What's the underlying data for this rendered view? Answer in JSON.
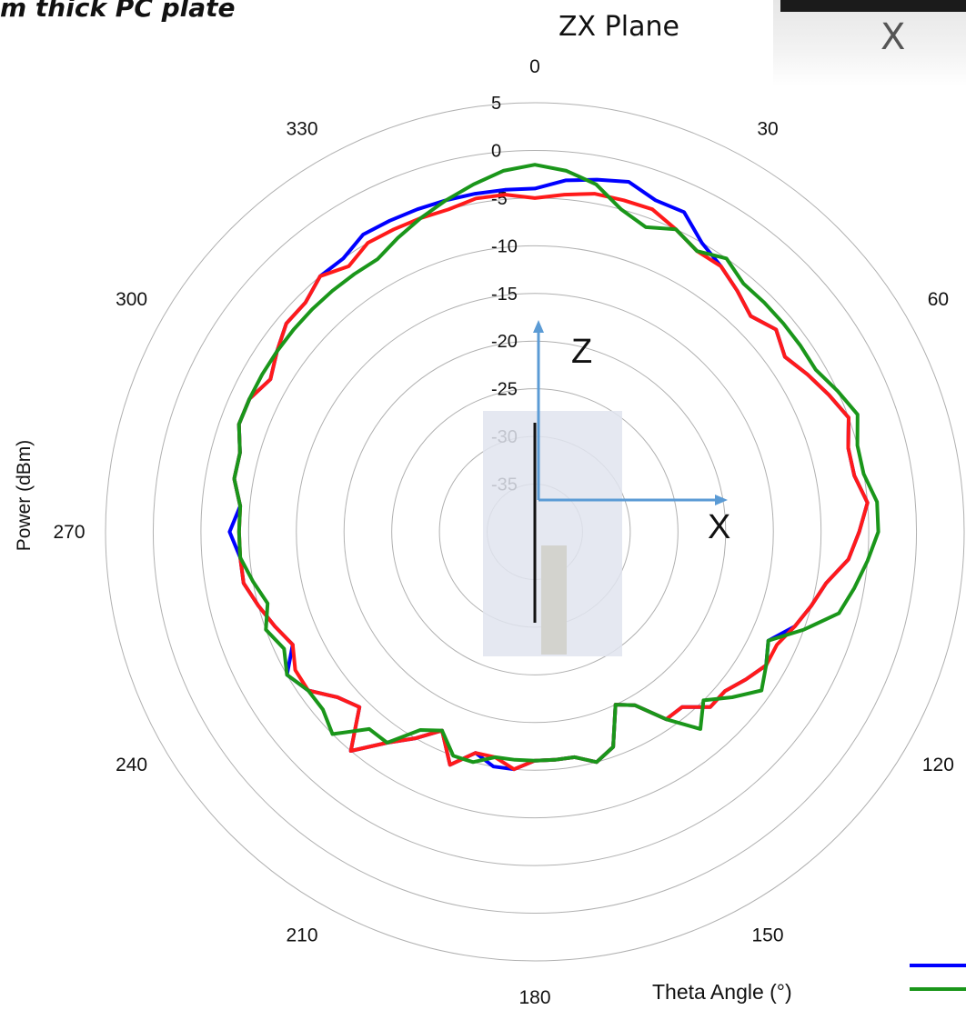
{
  "page_title": "m thick PC plate",
  "plane_title": "ZX Plane",
  "inset_label": "X",
  "colors": {
    "grid": "#b0b0b0",
    "series_1": "#0000ff",
    "series_2": "#ff1a1a",
    "series_3": "#1a961a",
    "axis_arrows": "#5b9bd5"
  },
  "overlay": {
    "z_label": "Z",
    "x_label": "X"
  },
  "chart_data": {
    "type": "polar-line",
    "title": "ZX Plane",
    "ylabel": "Power (dBm)",
    "xlabel": "Theta  Angle (°)",
    "r_range": [
      -40,
      5
    ],
    "r_ticks": [
      5,
      0,
      -5,
      -10,
      -15,
      -20,
      -25,
      -30,
      -35
    ],
    "angle_ticks": [
      0,
      30,
      60,
      120,
      150,
      180,
      210,
      240,
      270,
      300,
      330
    ],
    "grid": true,
    "theta": [
      0,
      5,
      10,
      15,
      20,
      25,
      30,
      35,
      40,
      45,
      50,
      55,
      60,
      65,
      70,
      75,
      80,
      85,
      90,
      95,
      100,
      105,
      110,
      115,
      120,
      125,
      130,
      135,
      140,
      145,
      150,
      155,
      160,
      165,
      170,
      175,
      180,
      185,
      190,
      195,
      200,
      205,
      210,
      215,
      220,
      225,
      230,
      235,
      240,
      245,
      250,
      255,
      260,
      265,
      270,
      275,
      280,
      285,
      290,
      295,
      300,
      305,
      310,
      315,
      320,
      325,
      330,
      335,
      340,
      345,
      350,
      355
    ],
    "series": [
      {
        "color": "#0000ff",
        "values": [
          -4,
          -3,
          -2.5,
          -2,
          -3,
          -3,
          -5,
          -6,
          -7,
          -8,
          -7,
          -8,
          -7,
          -6,
          -5,
          -6,
          -6,
          -5,
          -6,
          -7,
          -9,
          -10,
          -11,
          -13,
          -12,
          -13,
          -14,
          -14,
          -16,
          -16,
          -19,
          -20,
          -16,
          -15,
          -16,
          -16,
          -16,
          -15,
          -15,
          -16,
          -14,
          -17,
          -15,
          -13,
          -10,
          -14,
          -13,
          -11,
          -10,
          -12,
          -11,
          -10,
          -9,
          -9,
          -8,
          -9,
          -8,
          -8,
          -7,
          -7,
          -8,
          -7,
          -6,
          -6,
          -5,
          -5,
          -4,
          -4,
          -4,
          -4,
          -4,
          -4
        ]
      },
      {
        "color": "#ff1a1a",
        "values": [
          -5,
          -4.5,
          -4,
          -4,
          -4,
          -5,
          -6,
          -6,
          -7,
          -8,
          -7,
          -8,
          -7,
          -6,
          -5,
          -6,
          -6,
          -5,
          -6,
          -7,
          -9,
          -10,
          -11,
          -12,
          -12,
          -13,
          -14,
          -14,
          -16,
          -16,
          -19,
          -20,
          -16,
          -15,
          -16,
          -16,
          -16,
          -15,
          -16,
          -16,
          -14,
          -17,
          -15,
          -13,
          -10,
          -14,
          -13,
          -11,
          -11,
          -12,
          -11,
          -10,
          -9,
          -9,
          -9,
          -9,
          -8,
          -8,
          -7,
          -7,
          -8,
          -7,
          -6,
          -6,
          -5,
          -6,
          -5,
          -5,
          -5,
          -5,
          -4.5,
          -4.5
        ]
      },
      {
        "color": "#1a961a",
        "values": [
          -1.5,
          -2,
          -3,
          -5,
          -6,
          -5,
          -6,
          -5,
          -6,
          -6,
          -6,
          -6,
          -6,
          -5,
          -4,
          -5,
          -5,
          -4,
          -4,
          -5,
          -6,
          -7,
          -10,
          -13,
          -12,
          -11,
          -13,
          -15,
          -13,
          -16,
          -19,
          -20,
          -16,
          -15,
          -16,
          -16,
          -16,
          -16,
          -16,
          -15,
          -15,
          -17,
          -16,
          -13,
          -13,
          -10,
          -11,
          -11,
          -10,
          -11,
          -10,
          -11,
          -10,
          -9,
          -9,
          -9,
          -8,
          -8,
          -7,
          -7,
          -7,
          -7,
          -7,
          -7,
          -7,
          -7,
          -7,
          -6,
          -5,
          -4,
          -3,
          -2
        ]
      }
    ]
  }
}
